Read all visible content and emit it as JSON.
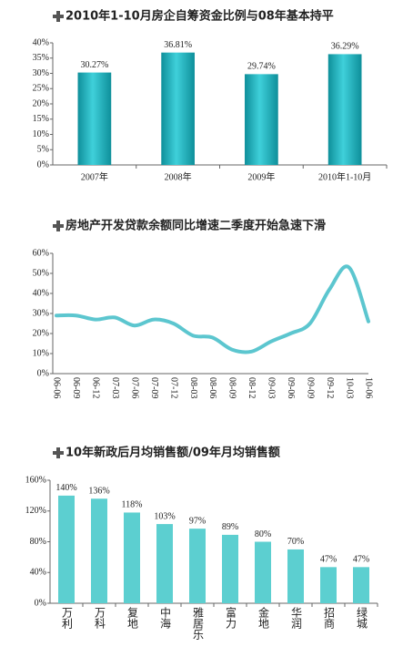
{
  "chart_data": [
    {
      "type": "bar",
      "title": "2010年1-10月房企自筹资金比例与08年基本持平",
      "categories": [
        "2007年",
        "2008年",
        "2009年",
        "2010年1-10月"
      ],
      "values": [
        30.27,
        36.81,
        29.74,
        36.29
      ],
      "value_labels": [
        "30.27%",
        "36.81%",
        "29.74%",
        "36.29%"
      ],
      "color": "#1bb3bf",
      "ylim": [
        0,
        40
      ],
      "yticks": [
        {
          "value": 0,
          "label": "0%"
        },
        {
          "value": 5,
          "label": "5%"
        },
        {
          "value": 10,
          "label": "10%"
        },
        {
          "value": 15,
          "label": "15%"
        },
        {
          "value": 20,
          "label": "20%"
        },
        {
          "value": 25,
          "label": "25%"
        },
        {
          "value": 30,
          "label": "30%"
        },
        {
          "value": 35,
          "label": "35%"
        },
        {
          "value": 40,
          "label": "40%"
        }
      ]
    },
    {
      "type": "line",
      "title": "房地产开发贷款余额同比增速二季度开始急速下滑",
      "categories": [
        "06-06",
        "06-09",
        "06-12",
        "07-03",
        "07-06",
        "07-09",
        "07-12",
        "08-03",
        "08-06",
        "08-09",
        "08-12",
        "09-03",
        "09-06",
        "09-09",
        "09-12",
        "10-03",
        "10-06"
      ],
      "values": [
        29,
        29,
        27,
        28,
        24,
        27,
        25,
        19,
        18,
        12,
        11,
        16,
        20,
        25,
        42,
        53,
        26
      ],
      "color": "#5cc6cf",
      "ylim": [
        0,
        60
      ],
      "yticks": [
        {
          "value": 0,
          "label": "0%"
        },
        {
          "value": 10,
          "label": "10%"
        },
        {
          "value": 20,
          "label": "20%"
        },
        {
          "value": 30,
          "label": "30%"
        },
        {
          "value": 40,
          "label": "40%"
        },
        {
          "value": 50,
          "label": "50%"
        },
        {
          "value": 60,
          "label": "60%"
        }
      ]
    },
    {
      "type": "bar",
      "title": "10年新政后月均销售额/09年月均销售额",
      "categories": [
        "万利",
        "万科",
        "复地",
        "中海",
        "雅居乐",
        "富力",
        "金地",
        "华润",
        "招商",
        "绿城"
      ],
      "values": [
        140,
        136,
        118,
        103,
        97,
        89,
        80,
        70,
        47,
        47
      ],
      "value_labels": [
        "140%",
        "136%",
        "118%",
        "103%",
        "97%",
        "89%",
        "80%",
        "70%",
        "47%",
        "47%"
      ],
      "color": "#5ccfd0",
      "ylim": [
        0,
        160
      ],
      "yticks": [
        {
          "value": 0,
          "label": "0%"
        },
        {
          "value": 40,
          "label": "40%"
        },
        {
          "value": 80,
          "label": "80%"
        },
        {
          "value": 120,
          "label": "120%"
        },
        {
          "value": 160,
          "label": "160%"
        }
      ]
    }
  ]
}
